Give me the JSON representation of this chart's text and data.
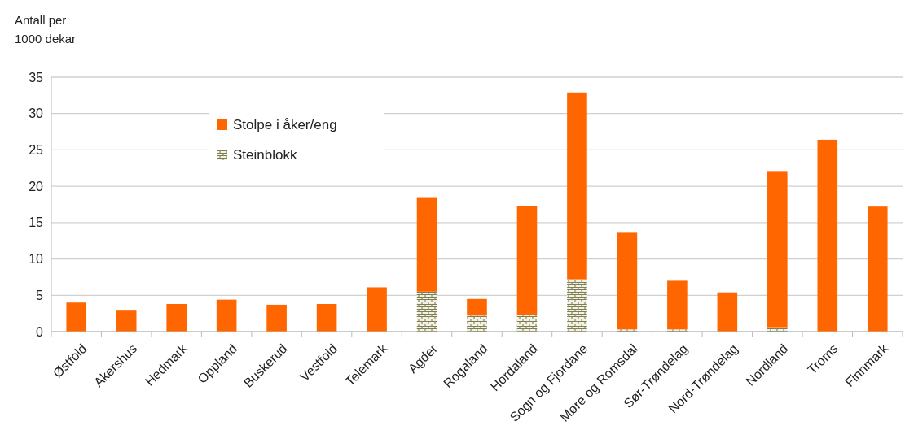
{
  "chart_data": {
    "type": "bar",
    "stacked": true,
    "ylabel": "Antall per 1000 dekar",
    "categories": [
      "Østfold",
      "Akershus",
      "Hedmark",
      "Oppland",
      "Buskerud",
      "Vestfold",
      "Telemark",
      "Agder",
      "Rogaland",
      "Hordaland",
      "Sogn og Fjordane",
      "Møre og Romsdal",
      "Sør-Trøndelag",
      "Nord-Trøndelag",
      "Nordland",
      "Troms",
      "Finnmark"
    ],
    "series": [
      {
        "name": "Steinblokk",
        "color": "#7f7f55",
        "values": [
          null,
          null,
          null,
          null,
          null,
          null,
          null,
          5.5,
          2.2,
          2.3,
          7.2,
          0.3,
          0.3,
          null,
          0.6,
          null,
          null
        ]
      },
      {
        "name": "Stolpe i åker/eng",
        "color": "#ff6600",
        "values": [
          4.0,
          3.0,
          3.8,
          4.4,
          3.7,
          3.8,
          6.1,
          13.0,
          2.3,
          15.0,
          25.7,
          13.3,
          6.7,
          5.4,
          21.5,
          26.4,
          17.2
        ]
      }
    ],
    "ylim": [
      0,
      35
    ],
    "yticks": [
      0,
      5,
      10,
      15,
      20,
      25,
      30,
      35
    ],
    "grid": "y",
    "legend": "top"
  }
}
